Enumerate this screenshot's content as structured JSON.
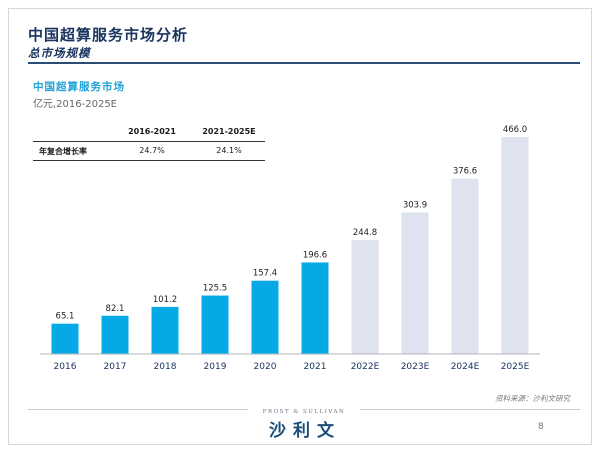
{
  "header": {
    "title": "中国超算服务市场分析",
    "subtitle": "总市场规模"
  },
  "chart_title": "中国超算服务市场",
  "chart_unit": "亿元,2016-2025E",
  "cagr_table": {
    "headers": [
      "",
      "2016-2021",
      "2021-2025E"
    ],
    "row": {
      "label": "年复合增长率",
      "values": [
        "24.7%",
        "24.1%"
      ]
    }
  },
  "chart_data": {
    "type": "bar",
    "title": "中国超算服务市场",
    "ylabel": "亿元",
    "categories": [
      "2016",
      "2017",
      "2018",
      "2019",
      "2020",
      "2021",
      "2022E",
      "2023E",
      "2024E",
      "2025E"
    ],
    "values": [
      65.1,
      82.1,
      101.2,
      125.5,
      157.4,
      196.6,
      244.8,
      303.9,
      376.6,
      466.0
    ],
    "value_labels": [
      "65.1",
      "82.1",
      "101.2",
      "125.5",
      "157.4",
      "196.6",
      "244.8",
      "303.9",
      "376.6",
      "466.0"
    ],
    "actual_color": "#05a9e6",
    "forecast_color": "#dfe3ef",
    "forecast_start_index": 6,
    "ylim": [
      0,
      466
    ],
    "grid": false,
    "legend": "none"
  },
  "footer": {
    "source": "资料来源：沙利文研究",
    "logo_en": "FROST & SULLIVAN",
    "logo_cn": "沙利文",
    "page": "8"
  }
}
